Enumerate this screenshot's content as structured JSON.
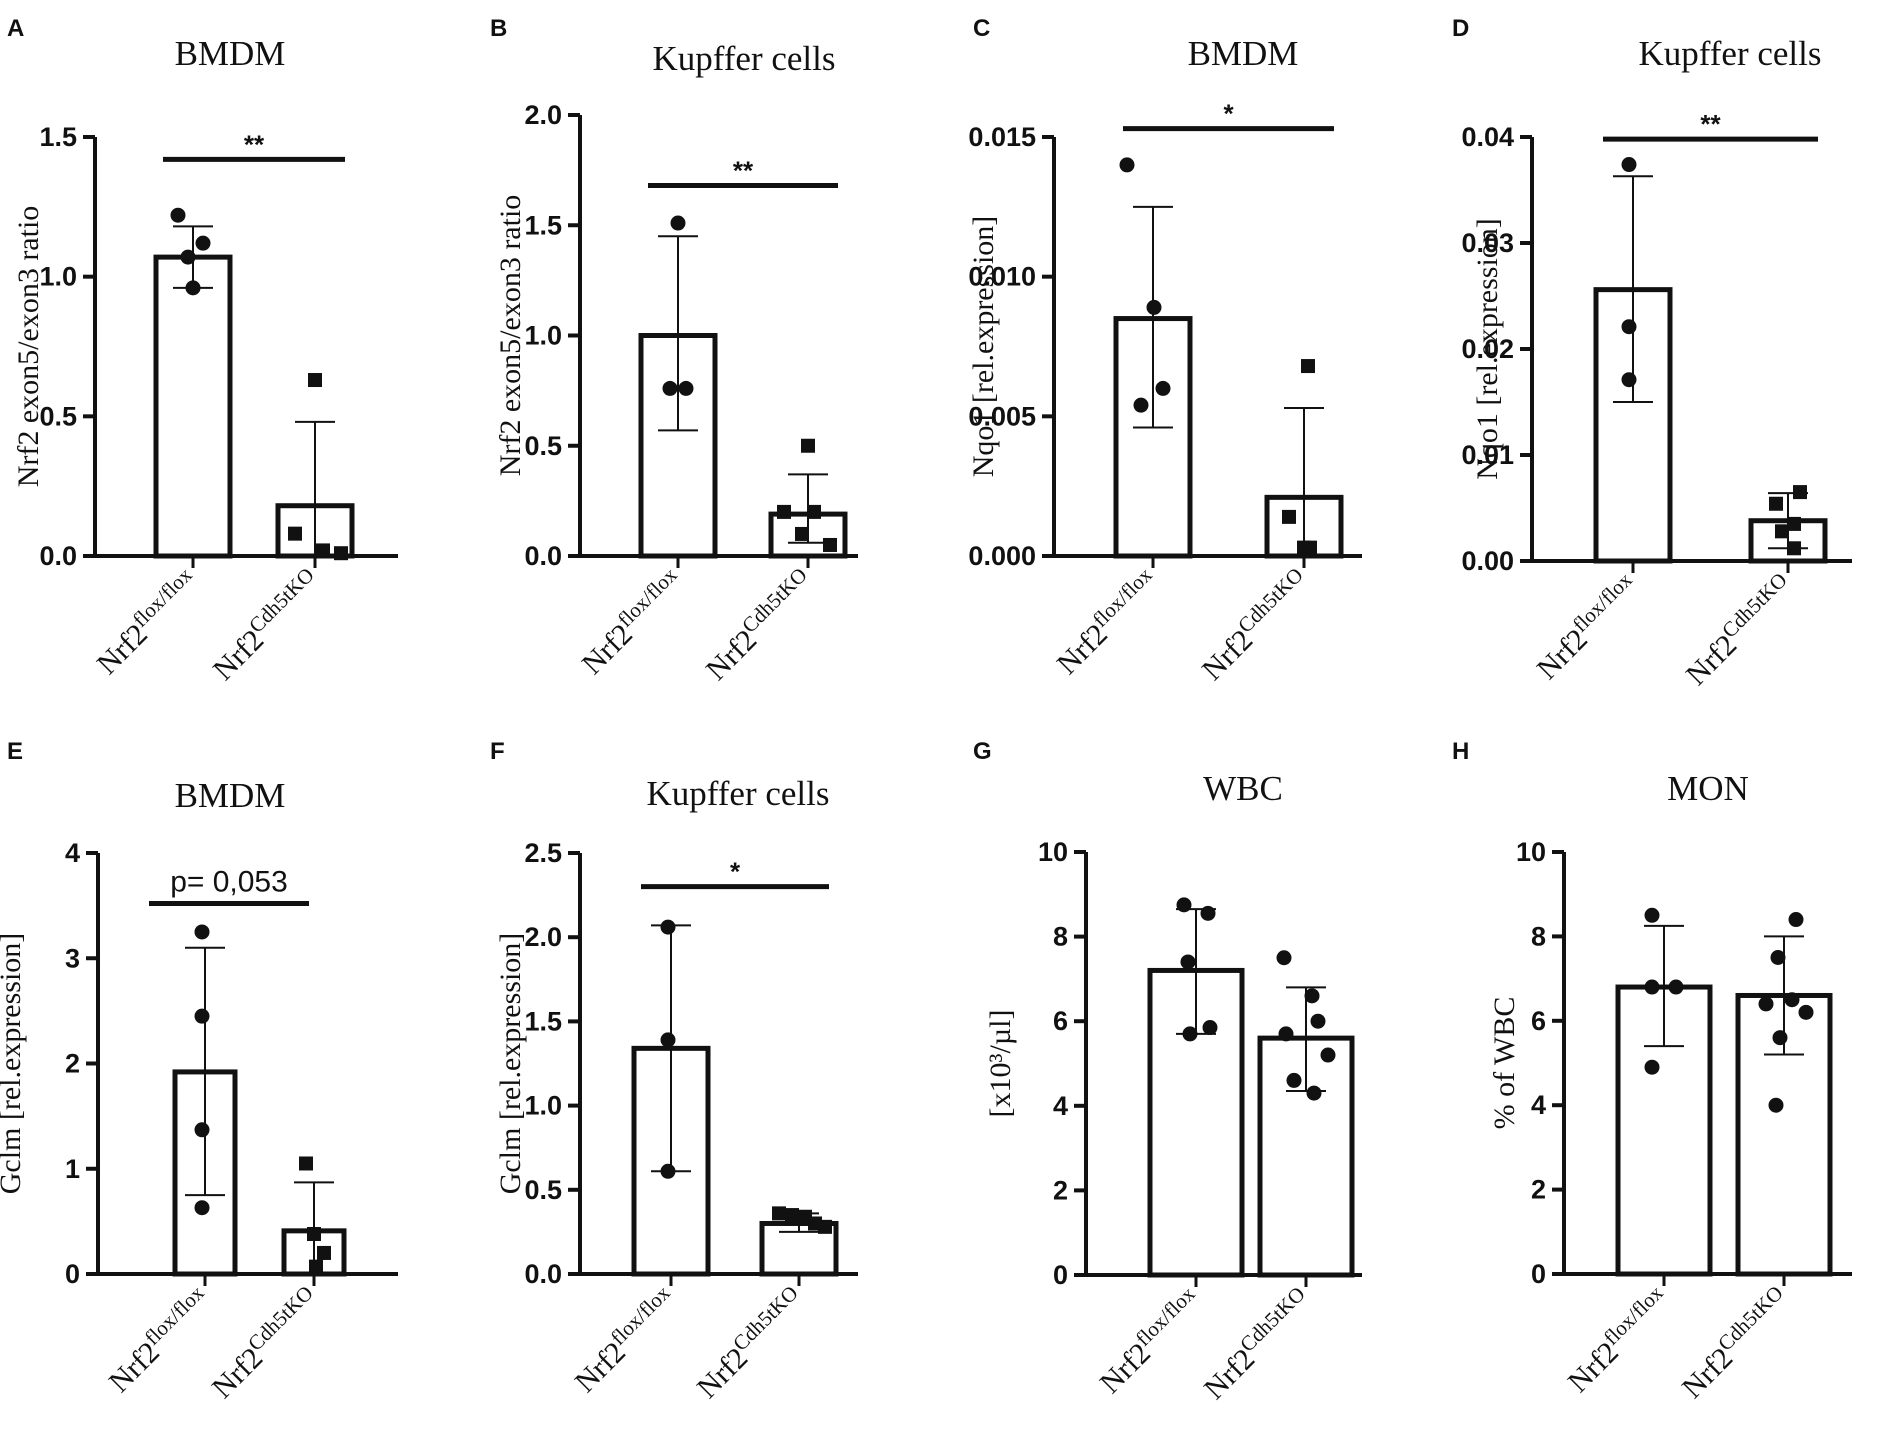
{
  "panels": [
    {
      "letter": "A",
      "title": "BMDM",
      "ylabel": "Nrf2 exon5/exon3 ratio",
      "ylim": [
        0,
        1.5
      ],
      "ticks": [
        0.0,
        0.5,
        1.0,
        1.5
      ],
      "tick_labels": [
        "0.0",
        "0.5",
        "1.0",
        "1.5"
      ],
      "groups": [
        {
          "label_base": "Nrf2",
          "label_sup": "flox/flox",
          "mean": 1.07,
          "sd_low": 0.96,
          "sd_high": 1.18,
          "marker": "circle",
          "points": [
            1.22,
            1.12,
            1.07,
            0.96
          ]
        },
        {
          "label_base": "Nrf2",
          "label_sup": "Cdh5tKO",
          "mean": 0.18,
          "sd_low": 0.0,
          "sd_high": 0.48,
          "marker": "square",
          "points": [
            0.63,
            0.08,
            0.02,
            0.01
          ]
        }
      ],
      "annotation": {
        "text": "**",
        "type": "stars",
        "y": 1.42,
        "from": 0,
        "to": 1
      }
    },
    {
      "letter": "B",
      "title": "Kupffer cells",
      "ylabel": "Nrf2 exon5/exon3 ratio",
      "ylim": [
        0,
        2.0
      ],
      "ticks": [
        0.0,
        0.5,
        1.0,
        1.5,
        2.0
      ],
      "tick_labels": [
        "0.0",
        "0.5",
        "1.0",
        "1.5",
        "2.0"
      ],
      "groups": [
        {
          "label_base": "Nrf2",
          "label_sup": "flox/flox",
          "mean": 1.0,
          "sd_low": 0.57,
          "sd_high": 1.45,
          "marker": "circle",
          "points": [
            1.51,
            0.76,
            0.76
          ]
        },
        {
          "label_base": "Nrf2",
          "label_sup": "Cdh5tKO",
          "mean": 0.19,
          "sd_low": 0.06,
          "sd_high": 0.37,
          "marker": "square",
          "points": [
            0.5,
            0.2,
            0.2,
            0.1,
            0.05
          ]
        }
      ],
      "annotation": {
        "text": "**",
        "type": "stars",
        "y": 1.68,
        "from": 0,
        "to": 1
      }
    },
    {
      "letter": "C",
      "title": "BMDM",
      "ylabel": "Nqo1 [rel.expression]",
      "ylim": [
        0,
        0.015
      ],
      "ticks": [
        0.0,
        0.005,
        0.01,
        0.015
      ],
      "tick_labels": [
        "0.000",
        "0.005",
        "0.010",
        "0.015"
      ],
      "groups": [
        {
          "label_base": "Nrf2",
          "label_sup": "flox/flox",
          "mean": 0.0085,
          "sd_low": 0.0046,
          "sd_high": 0.0125,
          "marker": "circle",
          "points": [
            0.014,
            0.0089,
            0.006,
            0.0054
          ]
        },
        {
          "label_base": "Nrf2",
          "label_sup": "Cdh5tKO",
          "mean": 0.0021,
          "sd_low": 0.0,
          "sd_high": 0.0053,
          "marker": "square",
          "points": [
            0.0068,
            0.0014,
            0.0003,
            0.0003
          ]
        }
      ],
      "annotation": {
        "text": "*",
        "type": "stars",
        "y": 0.0153,
        "from": 0,
        "to": 1
      }
    },
    {
      "letter": "D",
      "title": "Kupffer cells",
      "ylabel": "Nqo1 [rel.expression]",
      "ylim": [
        0,
        0.04
      ],
      "ticks": [
        0.0,
        0.01,
        0.02,
        0.03,
        0.04
      ],
      "tick_labels": [
        "0.00",
        "0.01",
        "0.02",
        "0.03",
        "0.04"
      ],
      "groups": [
        {
          "label_base": "Nrf2",
          "label_sup": "flox/flox",
          "mean": 0.0256,
          "sd_low": 0.015,
          "sd_high": 0.0363,
          "marker": "circle",
          "points": [
            0.0374,
            0.0221,
            0.0171
          ]
        },
        {
          "label_base": "Nrf2",
          "label_sup": "Cdh5tKO",
          "mean": 0.0038,
          "sd_low": 0.0012,
          "sd_high": 0.0064,
          "marker": "square",
          "points": [
            0.0065,
            0.0054,
            0.0035,
            0.0028,
            0.0012
          ]
        }
      ],
      "annotation": {
        "text": "**",
        "type": "stars",
        "y": 0.0398,
        "from": 0,
        "to": 1
      }
    },
    {
      "letter": "E",
      "title": "BMDM",
      "ylabel": "Gclm [rel.expression]",
      "ylim": [
        0,
        4
      ],
      "ticks": [
        0,
        1,
        2,
        3,
        4
      ],
      "tick_labels": [
        "0",
        "1",
        "2",
        "3",
        "4"
      ],
      "groups": [
        {
          "label_base": "Nrf2",
          "label_sup": "flox/flox",
          "mean": 1.92,
          "sd_low": 0.75,
          "sd_high": 3.1,
          "marker": "circle",
          "points": [
            3.25,
            2.45,
            1.37,
            0.63
          ]
        },
        {
          "label_base": "Nrf2",
          "label_sup": "Cdh5tKO",
          "mean": 0.41,
          "sd_low": 0.0,
          "sd_high": 0.87,
          "marker": "square",
          "points": [
            1.05,
            0.38,
            0.2,
            0.07
          ]
        }
      ],
      "annotation": {
        "text": "p= 0,053",
        "type": "pvalue",
        "y": 3.52,
        "from": 0,
        "to": 1
      }
    },
    {
      "letter": "F",
      "title": "Kupffer cells",
      "ylabel": "Gclm [rel.expression]",
      "ylim": [
        0,
        2.5
      ],
      "ticks": [
        0.0,
        0.5,
        1.0,
        1.5,
        2.0,
        2.5
      ],
      "tick_labels": [
        "0.0",
        "0.5",
        "1.0",
        "1.5",
        "2.0",
        "2.5"
      ],
      "groups": [
        {
          "label_base": "Nrf2",
          "label_sup": "flox/flox",
          "mean": 1.34,
          "sd_low": 0.61,
          "sd_high": 2.07,
          "marker": "circle",
          "points": [
            2.06,
            1.39,
            0.61
          ]
        },
        {
          "label_base": "Nrf2",
          "label_sup": "Cdh5tKO",
          "mean": 0.3,
          "sd_low": 0.25,
          "sd_high": 0.36,
          "marker": "square",
          "points": [
            0.36,
            0.35,
            0.34,
            0.3,
            0.28
          ]
        }
      ],
      "annotation": {
        "text": "*",
        "type": "stars",
        "y": 2.3,
        "from": 0,
        "to": 1
      }
    },
    {
      "letter": "G",
      "title": "WBC",
      "ylabel": "[x10³/µl]",
      "ylim": [
        0,
        10
      ],
      "ticks": [
        0,
        2,
        4,
        6,
        8,
        10
      ],
      "tick_labels": [
        "0",
        "2",
        "4",
        "6",
        "8",
        "10"
      ],
      "groups": [
        {
          "label_base": "Nrf2",
          "label_sup": "flox/flox",
          "mean": 7.2,
          "sd_low": 5.7,
          "sd_high": 8.65,
          "marker": "circle",
          "points": [
            8.75,
            8.55,
            7.4,
            5.85,
            5.7
          ]
        },
        {
          "label_base": "Nrf2",
          "label_sup": "Cdh5tKO",
          "mean": 5.6,
          "sd_low": 4.35,
          "sd_high": 6.8,
          "marker": "circle",
          "points": [
            7.5,
            6.6,
            6.0,
            5.7,
            5.2,
            4.6,
            4.3
          ]
        }
      ],
      "annotation": null
    },
    {
      "letter": "H",
      "title": "MON",
      "ylabel": "% of WBC",
      "ylim": [
        0,
        10
      ],
      "ticks": [
        0,
        2,
        4,
        6,
        8,
        10
      ],
      "tick_labels": [
        "0",
        "2",
        "4",
        "6",
        "8",
        "10"
      ],
      "groups": [
        {
          "label_base": "Nrf2",
          "label_sup": "flox/flox",
          "mean": 6.8,
          "sd_low": 5.4,
          "sd_high": 8.25,
          "marker": "circle",
          "points": [
            8.5,
            6.8,
            6.8,
            4.9
          ]
        },
        {
          "label_base": "Nrf2",
          "label_sup": "Cdh5tKO",
          "mean": 6.6,
          "sd_low": 5.2,
          "sd_high": 8.0,
          "marker": "circle",
          "points": [
            8.4,
            7.5,
            6.5,
            6.4,
            6.2,
            5.6,
            4.0
          ]
        }
      ],
      "annotation": null
    }
  ],
  "colors": {
    "ink": "#111111",
    "bar_fill": "#ffffff"
  }
}
